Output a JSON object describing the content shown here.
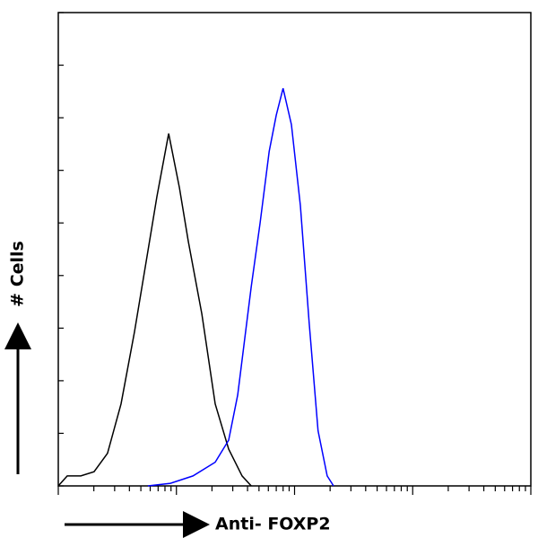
{
  "chart_data": {
    "type": "line",
    "x_label": "Anti- FOXP2",
    "y_label": "# Cells",
    "log_x": true,
    "xlim": [
      1,
      10000
    ],
    "xticks": [
      1,
      2,
      3,
      4,
      5,
      6,
      7,
      8,
      9,
      10,
      20,
      30,
      40,
      50,
      60,
      70,
      80,
      90,
      100,
      200,
      300,
      400,
      500,
      600,
      700,
      800,
      900,
      1000,
      2000,
      3000,
      4000,
      5000,
      6000,
      7000,
      8000,
      9000,
      10000
    ],
    "ylim": [
      0,
      90
    ],
    "yticks": [
      0,
      10,
      20,
      30,
      40,
      50,
      60,
      70,
      80,
      90
    ],
    "series": [
      {
        "color": "#000000",
        "x": [
          1,
          1.19,
          1.55,
          2.01,
          2.61,
          3.4,
          4.42,
          5.74,
          6.84,
          8.6,
          10.6,
          12.6,
          16.4,
          21.3,
          27.7,
          36,
          43
        ],
        "values": [
          0,
          1.9,
          1.9,
          2.7,
          6.2,
          15.6,
          29.3,
          44.7,
          55,
          67,
          56.7,
          46.5,
          32.7,
          15.6,
          7,
          1.9,
          0
        ]
      },
      {
        "color": "#0000ff",
        "x": [
          5.74,
          8.9,
          13.8,
          21.3,
          27.7,
          33,
          43,
          51,
          61,
          70,
          80,
          94,
          112,
          133,
          158,
          189,
          214
        ],
        "values": [
          0,
          0.5,
          1.9,
          4.5,
          8.7,
          17.3,
          37.9,
          49.9,
          63.6,
          70.5,
          75.6,
          68.7,
          53.3,
          31,
          10.5,
          1.9,
          0
        ]
      }
    ]
  }
}
